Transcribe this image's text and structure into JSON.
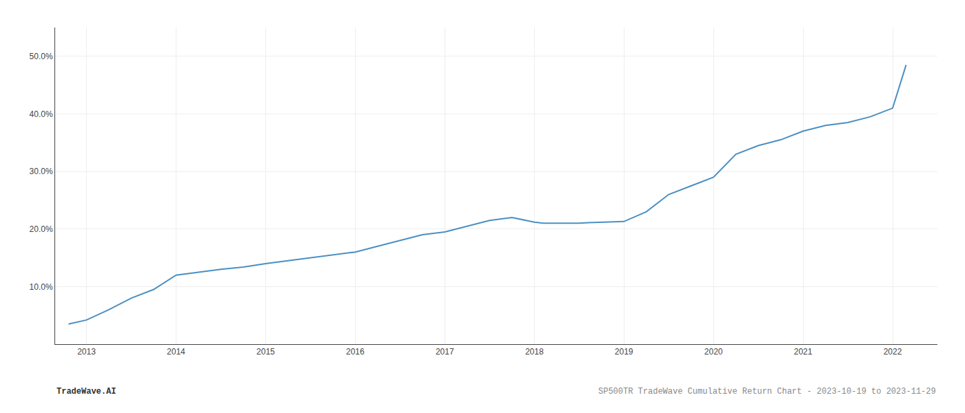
{
  "chart_data": {
    "type": "line",
    "x": [
      2012.8,
      2013.0,
      2013.25,
      2013.5,
      2013.75,
      2014.0,
      2014.25,
      2014.5,
      2014.75,
      2015.0,
      2015.25,
      2015.5,
      2015.75,
      2016.0,
      2016.25,
      2016.5,
      2016.75,
      2017.0,
      2017.25,
      2017.5,
      2017.75,
      2017.9,
      2018.0,
      2018.1,
      2018.25,
      2018.5,
      2018.6,
      2018.75,
      2019.0,
      2019.25,
      2019.5,
      2019.75,
      2020.0,
      2020.25,
      2020.5,
      2020.75,
      2021.0,
      2021.25,
      2021.5,
      2021.75,
      2022.0,
      2022.15
    ],
    "values": [
      3.5,
      4.2,
      6.0,
      8.0,
      9.5,
      12.0,
      12.5,
      13.0,
      13.4,
      14.0,
      14.5,
      15.0,
      15.5,
      16.0,
      17.0,
      18.0,
      19.0,
      19.5,
      20.5,
      21.5,
      22.0,
      21.5,
      21.2,
      21.0,
      21.0,
      21.0,
      21.1,
      21.2,
      21.3,
      23.0,
      26.0,
      27.5,
      29.0,
      33.0,
      34.5,
      35.5,
      37.0,
      38.0,
      38.5,
      39.5,
      41.0,
      48.5
    ],
    "color": "#4a8fc2",
    "xlim": [
      2012.65,
      2022.5
    ],
    "xticks": [
      2013,
      2014,
      2015,
      2016,
      2017,
      2018,
      2019,
      2020,
      2021,
      2022
    ],
    "ylim": [
      0,
      55
    ],
    "yticks": [
      {
        "value": 10.0,
        "label": "10.0%"
      },
      {
        "value": 20.0,
        "label": "20.0%"
      },
      {
        "value": 30.0,
        "label": "30.0%"
      },
      {
        "value": 40.0,
        "label": "40.0%"
      },
      {
        "value": 50.0,
        "label": "50.0%"
      }
    ],
    "grid": true,
    "annotations": [
      "TradeWave.AI",
      "SP500TR TradeWave Cumulative Return Chart - 2023-10-19 to 2023-11-29"
    ]
  }
}
